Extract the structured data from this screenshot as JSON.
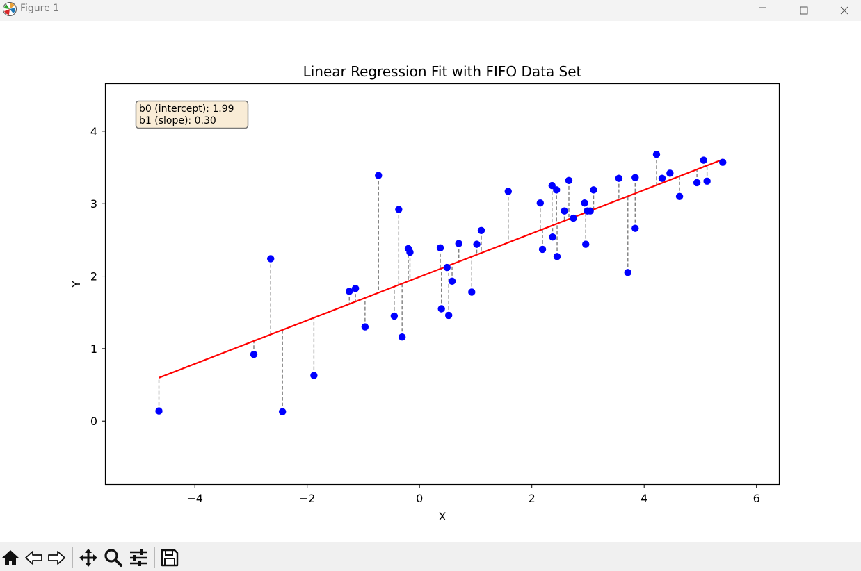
{
  "window": {
    "title": "Figure 1",
    "icons": [
      "matplotlib-app-icon",
      "minimize-icon",
      "maximize-icon",
      "close-icon"
    ]
  },
  "toolbar": {
    "items": [
      "home-icon",
      "back-icon",
      "forward-icon",
      "pan-icon",
      "zoom-icon",
      "configure-subplots-icon",
      "save-icon"
    ]
  },
  "chart_data": {
    "type": "scatter",
    "title": "Linear Regression Fit with FIFO Data Set",
    "xlabel": "X",
    "ylabel": "Y",
    "xlim": [
      -5.6,
      6.4
    ],
    "ylim": [
      -0.87,
      4.66
    ],
    "xticks": [
      -4,
      -2,
      0,
      2,
      4,
      6
    ],
    "yticks": [
      0,
      1,
      2,
      3,
      4
    ],
    "grid": false,
    "annotation": {
      "lines": [
        "b0 (intercept): 1.99",
        "b1 (slope): 0.30"
      ],
      "placement": "top-left"
    },
    "fit": {
      "intercept": 1.99,
      "slope": 0.3,
      "color": "#ff0000"
    },
    "points_color": "#0000ff",
    "residual_color": "#808080",
    "points": [
      [
        -4.64,
        0.14
      ],
      [
        -2.95,
        0.92
      ],
      [
        -2.65,
        2.24
      ],
      [
        -2.44,
        0.13
      ],
      [
        -1.88,
        0.63
      ],
      [
        -1.25,
        1.79
      ],
      [
        -1.14,
        1.83
      ],
      [
        -0.97,
        1.3
      ],
      [
        -0.73,
        3.39
      ],
      [
        -0.45,
        1.45
      ],
      [
        -0.37,
        2.92
      ],
      [
        -0.31,
        1.16
      ],
      [
        -0.2,
        2.38
      ],
      [
        -0.17,
        2.33
      ],
      [
        0.37,
        2.39
      ],
      [
        0.39,
        1.55
      ],
      [
        0.49,
        2.12
      ],
      [
        0.52,
        1.46
      ],
      [
        0.58,
        1.93
      ],
      [
        0.7,
        2.45
      ],
      [
        0.93,
        1.78
      ],
      [
        1.02,
        2.44
      ],
      [
        1.1,
        2.63
      ],
      [
        1.58,
        3.17
      ],
      [
        2.15,
        3.01
      ],
      [
        2.19,
        2.37
      ],
      [
        2.36,
        3.25
      ],
      [
        2.37,
        2.54
      ],
      [
        2.44,
        3.19
      ],
      [
        2.45,
        2.27
      ],
      [
        2.58,
        2.9
      ],
      [
        2.66,
        3.32
      ],
      [
        2.74,
        2.8
      ],
      [
        2.94,
        3.01
      ],
      [
        2.96,
        2.44
      ],
      [
        2.99,
        2.9
      ],
      [
        3.04,
        2.9
      ],
      [
        3.1,
        3.19
      ],
      [
        3.55,
        3.35
      ],
      [
        3.71,
        2.05
      ],
      [
        3.84,
        3.36
      ],
      [
        3.84,
        2.66
      ],
      [
        4.22,
        3.68
      ],
      [
        4.32,
        3.35
      ],
      [
        4.46,
        3.42
      ],
      [
        4.63,
        3.1
      ],
      [
        4.94,
        3.29
      ],
      [
        5.06,
        3.6
      ],
      [
        5.12,
        3.31
      ],
      [
        5.4,
        3.57
      ]
    ]
  }
}
